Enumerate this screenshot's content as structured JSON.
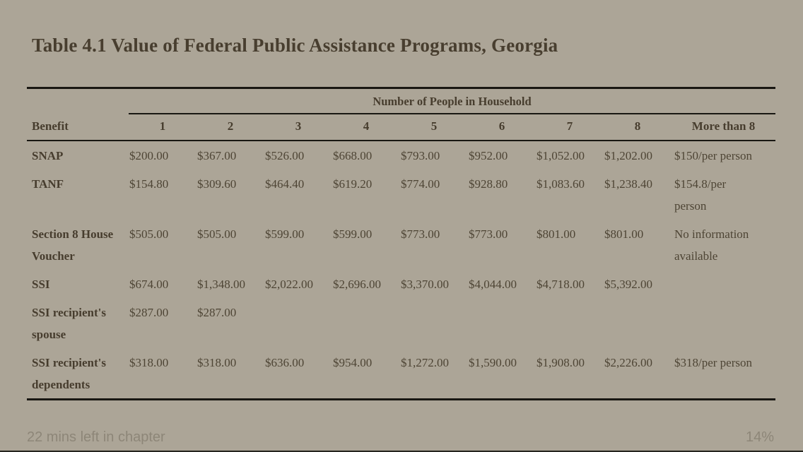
{
  "title": "Table 4.1 Value of Federal Public Assistance Programs, Georgia",
  "table": {
    "group_header": "Number of People in Household",
    "columns": [
      "Benefit",
      "1",
      "2",
      "3",
      "4",
      "5",
      "6",
      "7",
      "8",
      "More than 8"
    ],
    "rows": [
      {
        "benefit": "SNAP",
        "values": [
          "$200.00",
          "$367.00",
          "$526.00",
          "$668.00",
          "$793.00",
          "$952.00",
          "$1,052.00",
          "$1,202.00",
          "$150/per person"
        ]
      },
      {
        "benefit": "TANF",
        "values": [
          "$154.80",
          "$309.60",
          "$464.40",
          "$619.20",
          "$774.00",
          "$928.80",
          "$1,083.60",
          "$1,238.40",
          "$154.8/per\nperson"
        ]
      },
      {
        "benefit": "Section 8 House\nVoucher",
        "values": [
          "$505.00",
          "$505.00",
          "$599.00",
          "$599.00",
          "$773.00",
          "$773.00",
          "$801.00",
          "$801.00",
          "No information\navailable"
        ]
      },
      {
        "benefit": "SSI",
        "values": [
          "$674.00",
          "$1,348.00",
          "$2,022.00",
          "$2,696.00",
          "$3,370.00",
          "$4,044.00",
          "$4,718.00",
          "$5,392.00",
          ""
        ]
      },
      {
        "benefit": "SSI recipient's\nspouse",
        "values": [
          "$287.00",
          "$287.00",
          "",
          "",
          "",
          "",
          "",
          "",
          ""
        ]
      },
      {
        "benefit": "SSI recipient's\ndependents",
        "values": [
          "$318.00",
          "$318.00",
          "$636.00",
          "$954.00",
          "$1,272.00",
          "$1,590.00",
          "$1,908.00",
          "$2,226.00",
          "$318/per person"
        ]
      }
    ]
  },
  "footer": {
    "time_left": "22 mins left in chapter",
    "progress": "14%"
  },
  "colors": {
    "page_background": "#aca597",
    "heading_text": "#483e2f",
    "body_text": "#4e4535",
    "rule": "#191712",
    "footer_text": "#8d8678"
  }
}
